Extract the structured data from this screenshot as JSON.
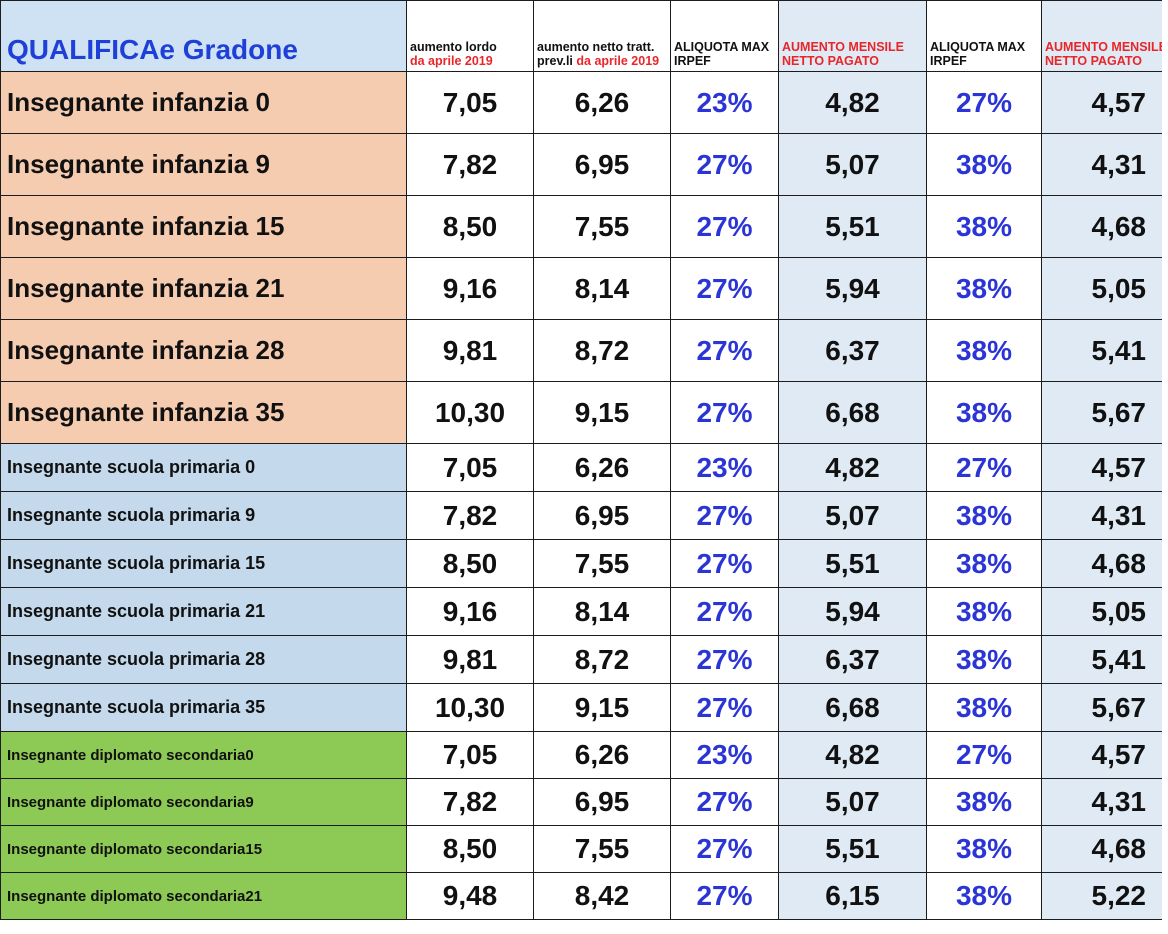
{
  "header": {
    "qualifica": "QUALIFICAe Gradone",
    "col1_black": "aumento lordo",
    "col1_red": "da aprile 2019",
    "col2_black": "aumento netto tratt. prev.li",
    "col2_red_a": "da",
    "col2_red_b": "aprile 2019",
    "col3": "ALIQUOTA MAX IRPEF",
    "col4": "AUMENTO MENSILE NETTO PAGATO",
    "col5": "ALIQUOTA MAX IRPEF",
    "col6": "AUMENTO MENSILE NETTO PAGATO"
  },
  "rows": [
    {
      "qualifica": "Insegnante infanzia 0",
      "lordo": "7,05",
      "netto": "6,26",
      "aliq1": "23%",
      "mensile1": "4,82",
      "aliq2": "27%",
      "mensile2": "4,57",
      "group": "infanzia"
    },
    {
      "qualifica": "Insegnante infanzia 9",
      "lordo": "7,82",
      "netto": "6,95",
      "aliq1": "27%",
      "mensile1": "5,07",
      "aliq2": "38%",
      "mensile2": "4,31",
      "group": "infanzia"
    },
    {
      "qualifica": "Insegnante infanzia 15",
      "lordo": "8,50",
      "netto": "7,55",
      "aliq1": "27%",
      "mensile1": "5,51",
      "aliq2": "38%",
      "mensile2": "4,68",
      "group": "infanzia"
    },
    {
      "qualifica": "Insegnante infanzia 21",
      "lordo": "9,16",
      "netto": "8,14",
      "aliq1": "27%",
      "mensile1": "5,94",
      "aliq2": "38%",
      "mensile2": "5,05",
      "group": "infanzia"
    },
    {
      "qualifica": "Insegnante infanzia 28",
      "lordo": "9,81",
      "netto": "8,72",
      "aliq1": "27%",
      "mensile1": "6,37",
      "aliq2": "38%",
      "mensile2": "5,41",
      "group": "infanzia"
    },
    {
      "qualifica": "Insegnante infanzia 35",
      "lordo": "10,30",
      "netto": "9,15",
      "aliq1": "27%",
      "mensile1": "6,68",
      "aliq2": "38%",
      "mensile2": "5,67",
      "group": "infanzia"
    },
    {
      "qualifica": "Insegnante scuola primaria 0",
      "lordo": "7,05",
      "netto": "6,26",
      "aliq1": "23%",
      "mensile1": "4,82",
      "aliq2": "27%",
      "mensile2": "4,57",
      "group": "primaria"
    },
    {
      "qualifica": "Insegnante scuola primaria 9",
      "lordo": "7,82",
      "netto": "6,95",
      "aliq1": "27%",
      "mensile1": "5,07",
      "aliq2": "38%",
      "mensile2": "4,31",
      "group": "primaria"
    },
    {
      "qualifica": "Insegnante scuola primaria 15",
      "lordo": "8,50",
      "netto": "7,55",
      "aliq1": "27%",
      "mensile1": "5,51",
      "aliq2": "38%",
      "mensile2": "4,68",
      "group": "primaria"
    },
    {
      "qualifica": "Insegnante scuola primaria 21",
      "lordo": "9,16",
      "netto": "8,14",
      "aliq1": "27%",
      "mensile1": "5,94",
      "aliq2": "38%",
      "mensile2": "5,05",
      "group": "primaria"
    },
    {
      "qualifica": "Insegnante scuola primaria 28",
      "lordo": "9,81",
      "netto": "8,72",
      "aliq1": "27%",
      "mensile1": "6,37",
      "aliq2": "38%",
      "mensile2": "5,41",
      "group": "primaria"
    },
    {
      "qualifica": "Insegnante scuola primaria 35",
      "lordo": "10,30",
      "netto": "9,15",
      "aliq1": "27%",
      "mensile1": "6,68",
      "aliq2": "38%",
      "mensile2": "5,67",
      "group": "primaria"
    },
    {
      "qualifica": "Insegnante diplomato secondaria0",
      "lordo": "7,05",
      "netto": "6,26",
      "aliq1": "23%",
      "mensile1": "4,82",
      "aliq2": "27%",
      "mensile2": "4,57",
      "group": "secondaria"
    },
    {
      "qualifica": "Insegnante diplomato secondaria9",
      "lordo": "7,82",
      "netto": "6,95",
      "aliq1": "27%",
      "mensile1": "5,07",
      "aliq2": "38%",
      "mensile2": "4,31",
      "group": "secondaria"
    },
    {
      "qualifica": "Insegnante diplomato secondaria15",
      "lordo": "8,50",
      "netto": "7,55",
      "aliq1": "27%",
      "mensile1": "5,51",
      "aliq2": "38%",
      "mensile2": "4,68",
      "group": "secondaria"
    },
    {
      "qualifica": "Insegnante diplomato secondaria21",
      "lordo": "9,48",
      "netto": "8,42",
      "aliq1": "27%",
      "mensile1": "6,15",
      "aliq2": "38%",
      "mensile2": "5,22",
      "group": "secondaria"
    }
  ],
  "colors": {
    "infanzia": "#f5ccb0",
    "primaria": "#c4d9ec",
    "secondaria": "#8dc955",
    "header_blue": "#1f3fd9",
    "header_red": "#e8262a",
    "percent_blue": "#2b35d6",
    "light_column": "#dfeaf4"
  }
}
